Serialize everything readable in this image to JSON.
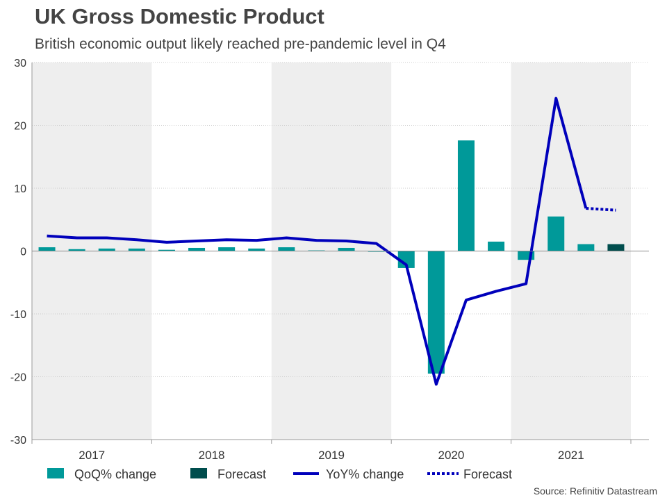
{
  "title": "UK Gross Domestic Product",
  "subtitle": "British economic output likely reached pre-pandemic level in Q4",
  "source": "Source: Refinitiv Datastream",
  "colors": {
    "qoq": "#009999",
    "qoq_forecast": "#004d4d",
    "yoy": "#0000bb",
    "year_band": "#eeeeee",
    "grid": "#cccccc",
    "axis": "#999999"
  },
  "chart_data": {
    "type": "bar",
    "title": "UK Gross Domestic Product",
    "subtitle": "British economic output likely reached pre-pandemic level in Q4",
    "xlabel": "",
    "ylabel": "",
    "ylim": [
      -30,
      30
    ],
    "yticks": [
      30,
      20,
      10,
      0,
      -10,
      -20,
      -30
    ],
    "grid": true,
    "years": [
      "2017",
      "2018",
      "2019",
      "2020",
      "2021"
    ],
    "quarters_per_year": 4,
    "categories": [
      "2017 Q1",
      "2017 Q2",
      "2017 Q3",
      "2017 Q4",
      "2018 Q1",
      "2018 Q2",
      "2018 Q3",
      "2018 Q4",
      "2019 Q1",
      "2019 Q2",
      "2019 Q3",
      "2019 Q4",
      "2020 Q1",
      "2020 Q2",
      "2020 Q3",
      "2020 Q4",
      "2021 Q1",
      "2021 Q2",
      "2021 Q3",
      "2021 Q4"
    ],
    "series": [
      {
        "name": "QoQ% change",
        "kind": "bar",
        "values": [
          0.6,
          0.3,
          0.4,
          0.4,
          0.2,
          0.5,
          0.6,
          0.4,
          0.6,
          0.1,
          0.5,
          -0.1,
          -2.7,
          -19.5,
          17.6,
          1.5,
          -1.4,
          5.5,
          1.1,
          null
        ]
      },
      {
        "name": "Forecast",
        "kind": "bar",
        "values": [
          null,
          null,
          null,
          null,
          null,
          null,
          null,
          null,
          null,
          null,
          null,
          null,
          null,
          null,
          null,
          null,
          null,
          null,
          null,
          1.1
        ]
      },
      {
        "name": "YoY% change",
        "kind": "line",
        "values": [
          2.4,
          2.1,
          2.1,
          1.8,
          1.4,
          1.6,
          1.8,
          1.7,
          2.1,
          1.7,
          1.6,
          1.2,
          -2.2,
          -21.2,
          -7.8,
          -6.4,
          -5.2,
          24.3,
          6.8,
          null
        ]
      },
      {
        "name": "Forecast",
        "kind": "line-dotted",
        "values": [
          null,
          null,
          null,
          null,
          null,
          null,
          null,
          null,
          null,
          null,
          null,
          null,
          null,
          null,
          null,
          null,
          null,
          null,
          6.8,
          6.5
        ]
      }
    ],
    "legend": {
      "placement": "bottom-left",
      "entries": [
        "QoQ% change",
        "Forecast",
        "YoY% change",
        "Forecast"
      ]
    }
  }
}
